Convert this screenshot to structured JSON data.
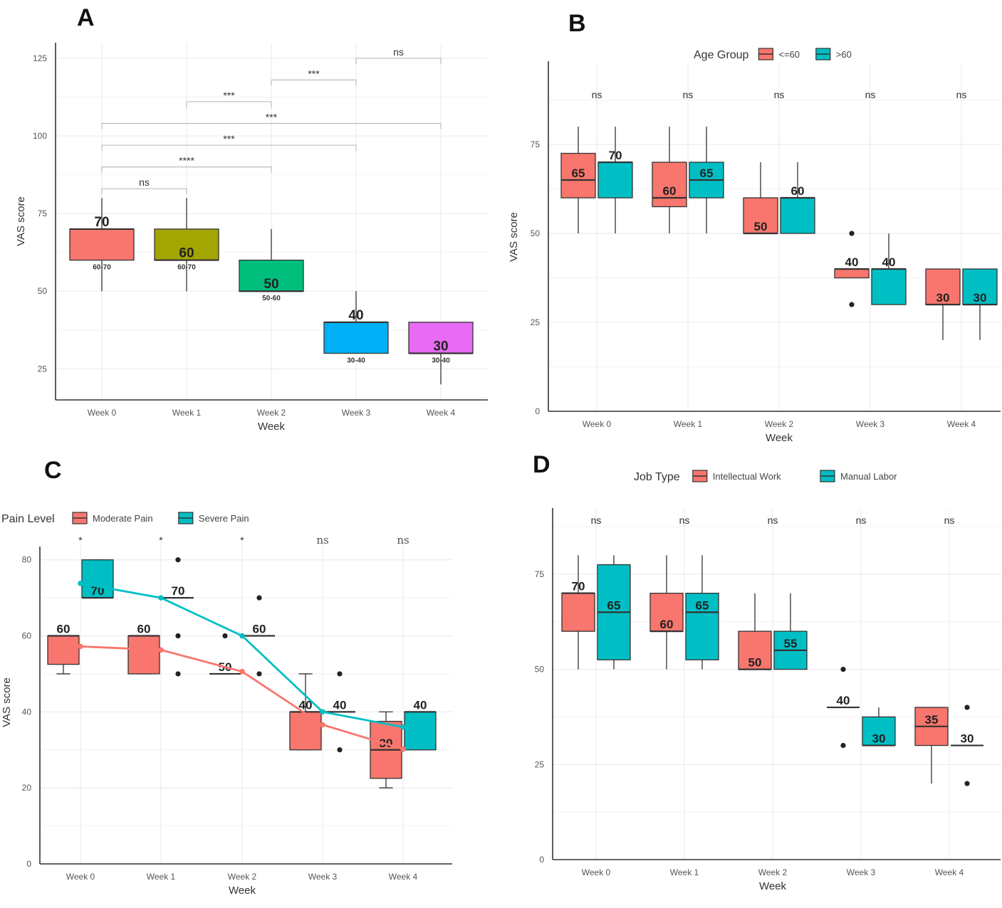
{
  "figure": {
    "colors": {
      "red": "#F8766D",
      "teal": "#00BFC4",
      "week0": "#F8766D",
      "week1": "#A3A500",
      "week2": "#00BF7D",
      "week3": "#00B0F6",
      "week4": "#E76BF3"
    }
  },
  "chart_data": [
    {
      "panel": "A",
      "type": "box",
      "title": "",
      "xlabel": "Week",
      "ylabel": "VAS score",
      "ylim": [
        15,
        130
      ],
      "yticks": [
        25,
        50,
        75,
        100,
        125
      ],
      "categories": [
        "Week 0",
        "Week 1",
        "Week 2",
        "Week 3",
        "Week 4"
      ],
      "boxes": [
        {
          "category": "Week 0",
          "q1": 60,
          "median": 70,
          "q3": 70,
          "low": 50,
          "high": 80,
          "label": "70",
          "iqr_label": "60-70",
          "color_key": "week0"
        },
        {
          "category": "Week 1",
          "q1": 60,
          "median": 60,
          "q3": 70,
          "low": 50,
          "high": 80,
          "label": "60",
          "iqr_label": "60-70",
          "color_key": "week1"
        },
        {
          "category": "Week 2",
          "q1": 50,
          "median": 50,
          "q3": 60,
          "low": 50,
          "high": 70,
          "label": "50",
          "iqr_label": "50-60",
          "color_key": "week2"
        },
        {
          "category": "Week 3",
          "q1": 30,
          "median": 40,
          "q3": 40,
          "low": 30,
          "high": 50,
          "label": "40",
          "iqr_label": "30-40",
          "color_key": "week3"
        },
        {
          "category": "Week 4",
          "q1": 30,
          "median": 30,
          "q3": 40,
          "low": 20,
          "high": 40,
          "label": "30",
          "iqr_label": "30-40",
          "color_key": "week4"
        }
      ],
      "comparisons": [
        {
          "from": 0,
          "to": 1,
          "y": 83,
          "label": "ns"
        },
        {
          "from": 0,
          "to": 2,
          "y": 90,
          "label": "****"
        },
        {
          "from": 0,
          "to": 3,
          "y": 97,
          "label": "***"
        },
        {
          "from": 0,
          "to": 4,
          "y": 104,
          "label": "***"
        },
        {
          "from": 1,
          "to": 2,
          "y": 111,
          "label": "***"
        },
        {
          "from": 2,
          "to": 3,
          "y": 118,
          "label": "***"
        },
        {
          "from": 3,
          "to": 4,
          "y": 125,
          "label": "ns"
        }
      ]
    },
    {
      "panel": "B",
      "type": "box",
      "xlabel": "Week",
      "ylabel": "VAS score",
      "ylim": [
        0,
        98
      ],
      "yticks": [
        0,
        25,
        50,
        75
      ],
      "categories": [
        "Week 0",
        "Week 1",
        "Week 2",
        "Week 3",
        "Week 4"
      ],
      "legend": {
        "title": "Age Group",
        "position": "top",
        "entries": [
          {
            "name": "<=60",
            "color_key": "red"
          },
          {
            "name": ">60",
            "color_key": "teal"
          }
        ]
      },
      "significance": [
        "ns",
        "ns",
        "ns",
        "ns",
        "ns"
      ],
      "series": [
        {
          "name": "<=60",
          "color_key": "red",
          "boxes": [
            {
              "q1": 60,
              "median": 65,
              "q3": 72.5,
              "low": 50,
              "high": 80,
              "label": "65",
              "outliers": []
            },
            {
              "q1": 57.5,
              "median": 60,
              "q3": 70,
              "low": 50,
              "high": 80,
              "label": "60",
              "outliers": []
            },
            {
              "q1": 50,
              "median": 50,
              "q3": 60,
              "low": 50,
              "high": 70,
              "label": "50",
              "outliers": []
            },
            {
              "q1": 37.5,
              "median": 40,
              "q3": 40,
              "low": 37.5,
              "high": 40,
              "label": "40",
              "outliers": [
                50,
                30
              ]
            },
            {
              "q1": 30,
              "median": 30,
              "q3": 40,
              "low": 20,
              "high": 40,
              "label": "30",
              "outliers": []
            }
          ]
        },
        {
          "name": ">60",
          "color_key": "teal",
          "boxes": [
            {
              "q1": 60,
              "median": 70,
              "q3": 70,
              "low": 50,
              "high": 80,
              "label": "70",
              "outliers": []
            },
            {
              "q1": 60,
              "median": 65,
              "q3": 70,
              "low": 50,
              "high": 80,
              "label": "65",
              "outliers": []
            },
            {
              "q1": 50,
              "median": 60,
              "q3": 60,
              "low": 50,
              "high": 70,
              "label": "60",
              "outliers": []
            },
            {
              "q1": 30,
              "median": 40,
              "q3": 40,
              "low": 30,
              "high": 50,
              "label": "40",
              "outliers": []
            },
            {
              "q1": 30,
              "median": 30,
              "q3": 40,
              "low": 20,
              "high": 40,
              "label": "30",
              "outliers": []
            }
          ]
        }
      ]
    },
    {
      "panel": "C",
      "type": "box+line",
      "xlabel": "Week",
      "ylabel": "VAS score",
      "ylim": [
        0,
        85
      ],
      "yticks": [
        0,
        20,
        40,
        60,
        80
      ],
      "categories": [
        "Week 0",
        "Week 1",
        "Week 2",
        "Week 3",
        "Week 4"
      ],
      "legend": {
        "title": "Pain Level",
        "position": "top-left",
        "entries": [
          {
            "name": "Moderate Pain",
            "color_key": "red"
          },
          {
            "name": "Severe Pain",
            "color_key": "teal"
          }
        ]
      },
      "significance": [
        "*",
        "*",
        "*",
        "ns",
        "ns"
      ],
      "series": [
        {
          "name": "Moderate Pain",
          "color_key": "red",
          "means": [
            57.2,
            56.3,
            50.6,
            36.6,
            30.2
          ],
          "boxes": [
            {
              "q1": 52.5,
              "median": 60,
              "q3": 60,
              "low": 50,
              "high": 60,
              "label": "60",
              "outliers": []
            },
            {
              "q1": 50,
              "median": 60,
              "q3": 60,
              "low": 50,
              "high": 60,
              "label": "60",
              "outliers": []
            },
            {
              "q1": 50,
              "median": 50,
              "q3": 50,
              "low": 50,
              "high": 50,
              "label": "50",
              "outliers": [
                60
              ]
            },
            {
              "q1": 30,
              "median": 40,
              "q3": 40,
              "low": 30,
              "high": 50,
              "label": "40",
              "outliers": []
            },
            {
              "q1": 22.5,
              "median": 30,
              "q3": 37.5,
              "low": 20,
              "high": 40,
              "label": "30",
              "outliers": []
            }
          ]
        },
        {
          "name": "Severe Pain",
          "color_key": "teal",
          "means": [
            73.8,
            70,
            60,
            40,
            36
          ],
          "boxes": [
            {
              "q1": 70,
              "median": 70,
              "q3": 80,
              "low": 70,
              "high": 80,
              "label": "70",
              "outliers": []
            },
            {
              "q1": 70,
              "median": 70,
              "q3": 70,
              "low": 70,
              "high": 70,
              "label": "70",
              "outliers": [
                80,
                60,
                50
              ]
            },
            {
              "q1": 60,
              "median": 60,
              "q3": 60,
              "low": 60,
              "high": 60,
              "label": "60",
              "outliers": [
                70,
                50
              ]
            },
            {
              "q1": 40,
              "median": 40,
              "q3": 40,
              "low": 40,
              "high": 40,
              "label": "40",
              "outliers": [
                50,
                30
              ]
            },
            {
              "q1": 30,
              "median": 40,
              "q3": 40,
              "low": 30,
              "high": 40,
              "label": "40",
              "outliers": []
            }
          ]
        }
      ]
    },
    {
      "panel": "D",
      "type": "box",
      "xlabel": "Week",
      "ylabel": "",
      "ylim": [
        0,
        92
      ],
      "yticks": [
        0,
        25,
        50,
        75
      ],
      "categories": [
        "Week 0",
        "Week 1",
        "Week 2",
        "Week 3",
        "Week 4"
      ],
      "legend": {
        "title": "Job Type",
        "position": "top",
        "entries": [
          {
            "name": "Intellectual Work",
            "color_key": "red"
          },
          {
            "name": "Manual Labor",
            "color_key": "teal"
          }
        ]
      },
      "significance": [
        "ns",
        "ns",
        "ns",
        "ns",
        "ns"
      ],
      "series": [
        {
          "name": "Intellectual Work",
          "color_key": "red",
          "boxes": [
            {
              "q1": 60,
              "median": 70,
              "q3": 70,
              "low": 50,
              "high": 80,
              "label": "70",
              "outliers": []
            },
            {
              "q1": 60,
              "median": 60,
              "q3": 70,
              "low": 50,
              "high": 80,
              "label": "60",
              "outliers": []
            },
            {
              "q1": 50,
              "median": 50,
              "q3": 60,
              "low": 50,
              "high": 70,
              "label": "50",
              "outliers": []
            },
            {
              "q1": 40,
              "median": 40,
              "q3": 40,
              "low": 40,
              "high": 40,
              "label": "40",
              "outliers": [
                50,
                30
              ]
            },
            {
              "q1": 30,
              "median": 35,
              "q3": 40,
              "low": 20,
              "high": 40,
              "label": "35",
              "outliers": []
            }
          ]
        },
        {
          "name": "Manual Labor",
          "color_key": "teal",
          "boxes": [
            {
              "q1": 52.5,
              "median": 65,
              "q3": 77.5,
              "low": 50,
              "high": 80,
              "label": "65",
              "outliers": []
            },
            {
              "q1": 52.5,
              "median": 65,
              "q3": 70,
              "low": 50,
              "high": 80,
              "label": "65",
              "outliers": []
            },
            {
              "q1": 50,
              "median": 55,
              "q3": 60,
              "low": 50,
              "high": 70,
              "label": "55",
              "outliers": []
            },
            {
              "q1": 30,
              "median": 30,
              "q3": 37.5,
              "low": 30,
              "high": 40,
              "label": "30",
              "outliers": []
            },
            {
              "q1": 30,
              "median": 30,
              "q3": 30,
              "low": 30,
              "high": 30,
              "label": "30",
              "outliers": [
                40,
                20
              ]
            }
          ]
        }
      ]
    }
  ]
}
